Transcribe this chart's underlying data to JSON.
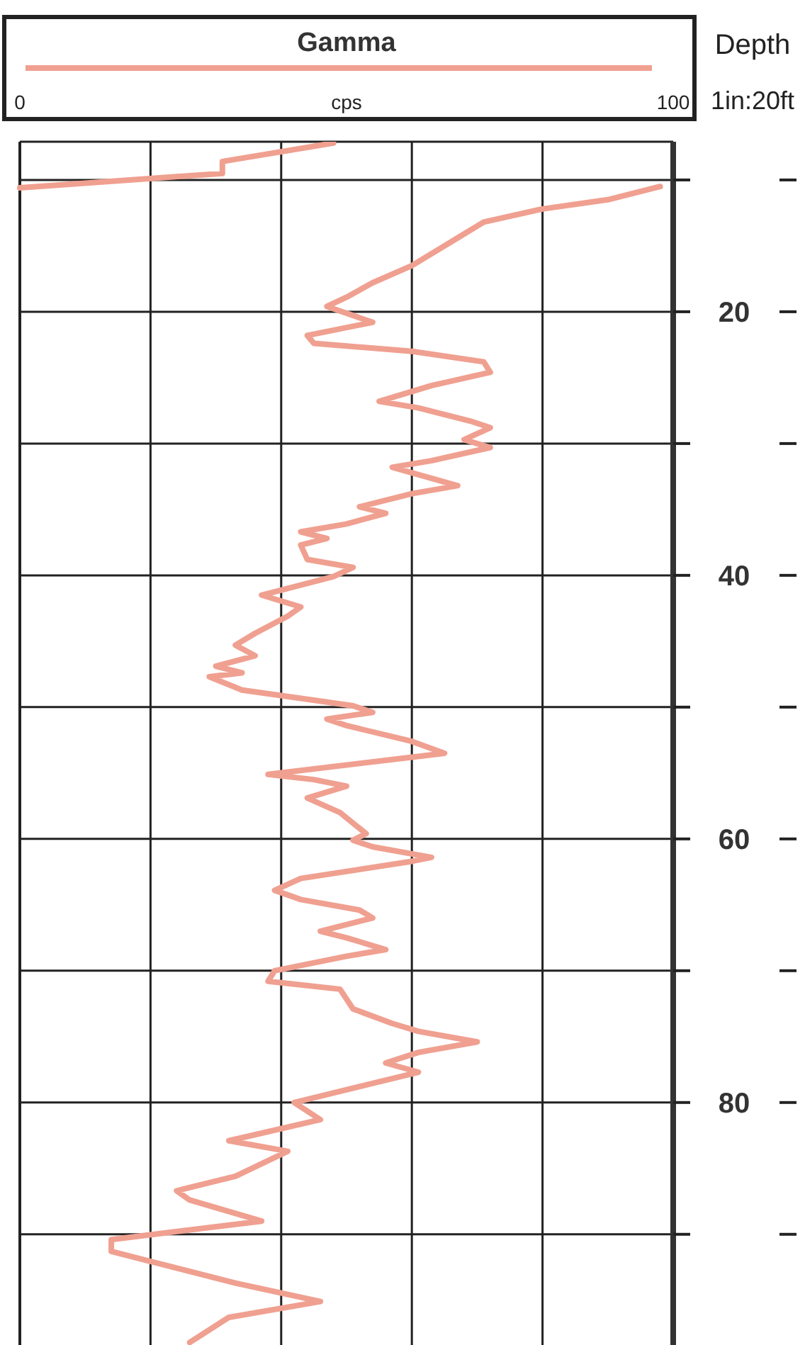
{
  "chart_data": {
    "type": "line",
    "xlabel": "cps",
    "ylabel": "Depth",
    "annotations": [
      "1in:20ft"
    ],
    "xlim": [
      0,
      100
    ],
    "xticks": [
      0,
      {
        "value": 20,
        "label": null
      },
      {
        "value": 40,
        "label": null
      },
      {
        "value": 60,
        "label": null
      },
      {
        "value": 80,
        "label": null
      },
      100
    ],
    "ylim": [
      98.4,
      7.1
    ],
    "yticks": [
      {
        "value": 10,
        "label": null
      },
      20,
      {
        "value": 30,
        "label": null
      },
      40,
      {
        "value": 50,
        "label": null
      },
      60,
      {
        "value": 70,
        "label": null
      },
      80,
      {
        "value": 90,
        "label": null
      }
    ],
    "grid": true,
    "legend": "top",
    "marker": "none",
    "line_style": "solid",
    "series": [
      {
        "name": "Gamma",
        "color": "#f0a090",
        "x": [
          48,
          31,
          31,
          0,
          null,
          98,
          90,
          80,
          71,
          67,
          60,
          54,
          50,
          47,
          54,
          44,
          45,
          60,
          71,
          72,
          63,
          55,
          61,
          69,
          72,
          68,
          72,
          63,
          57,
          67,
          60,
          52,
          56,
          50,
          43,
          47,
          43,
          44,
          51,
          48,
          41,
          37,
          43,
          41,
          36,
          33,
          36,
          30,
          34,
          29,
          34,
          44,
          51,
          54,
          47,
          50,
          60,
          65,
          60,
          38,
          45,
          50,
          44,
          49,
          53,
          51,
          54,
          63,
          60,
          43,
          39,
          43,
          52,
          54,
          46,
          50,
          56,
          50,
          39,
          38,
          49,
          51,
          57,
          61,
          70,
          61,
          56,
          61,
          42,
          46,
          32,
          41,
          33,
          24,
          26,
          37,
          14,
          14,
          33,
          46,
          32,
          26
        ],
        "values": [
          7.2,
          8.6,
          9.5,
          10.6,
          null,
          10.5,
          11.5,
          12.2,
          13.2,
          14.4,
          16.5,
          17.8,
          18.9,
          19.6,
          20.8,
          21.8,
          22.4,
          23.0,
          23.8,
          24.6,
          25.6,
          26.8,
          27.3,
          28.3,
          28.8,
          29.7,
          30.3,
          31.3,
          31.8,
          33.2,
          33.8,
          34.8,
          35.3,
          36.1,
          36.7,
          37.2,
          37.7,
          38.8,
          39.4,
          40.1,
          41.0,
          41.5,
          42.4,
          43.1,
          44.4,
          45.3,
          46.1,
          46.9,
          47.4,
          47.7,
          48.7,
          49.4,
          49.9,
          50.4,
          50.9,
          51.4,
          52.6,
          53.5,
          53.8,
          55.1,
          55.5,
          56.0,
          56.9,
          58.0,
          59.6,
          60.1,
          60.6,
          61.4,
          61.7,
          63.0,
          63.9,
          64.6,
          65.4,
          66.0,
          67.0,
          67.5,
          68.4,
          68.9,
          70.0,
          70.8,
          71.4,
          72.9,
          74.0,
          74.6,
          75.4,
          76.2,
          77.0,
          77.7,
          80.0,
          81.3,
          82.9,
          83.7,
          85.6,
          86.7,
          87.4,
          89.0,
          90.4,
          91.3,
          93.7,
          95.1,
          96.3,
          98.2
        ]
      }
    ]
  }
}
